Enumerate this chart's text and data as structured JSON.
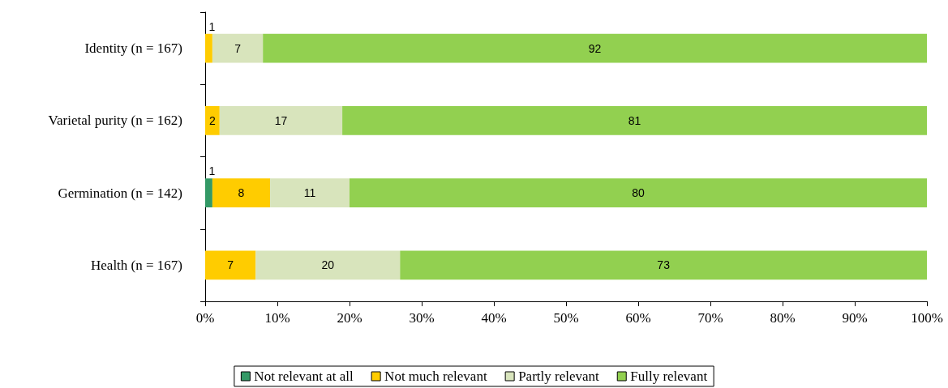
{
  "chart_data": {
    "type": "bar",
    "orientation": "horizontal",
    "stacked": true,
    "categories": [
      "Identity (n = 167)",
      "Varietal purity (n = 162)",
      "Germination (n = 142)",
      "Health (n = 167)"
    ],
    "series": [
      {
        "name": "Not relevant at all",
        "color": "#339966",
        "values": [
          0,
          0,
          1,
          0
        ],
        "value_labels": [
          null,
          null,
          "1",
          null
        ]
      },
      {
        "name": "Not much relevant",
        "color": "#ffcc00",
        "values": [
          1,
          2,
          8,
          7
        ],
        "value_labels": [
          "1",
          "2",
          "8",
          "7"
        ]
      },
      {
        "name": "Partly relevant",
        "color": "#d8e4bc",
        "values": [
          7,
          17,
          11,
          20
        ],
        "value_labels": [
          "7",
          "17",
          "11",
          "20"
        ]
      },
      {
        "name": "Fully relevant",
        "color": "#92d050",
        "values": [
          92,
          81,
          80,
          73
        ],
        "value_labels": [
          "92",
          "81",
          "80",
          "73"
        ]
      }
    ],
    "xlim": [
      0,
      100
    ],
    "xticks": [
      {
        "value": 0,
        "label": "0%"
      },
      {
        "value": 10,
        "label": "10%"
      },
      {
        "value": 20,
        "label": "20%"
      },
      {
        "value": 30,
        "label": "30%"
      },
      {
        "value": 40,
        "label": "40%"
      },
      {
        "value": 50,
        "label": "50%"
      },
      {
        "value": 60,
        "label": "60%"
      },
      {
        "value": 70,
        "label": "70%"
      },
      {
        "value": 80,
        "label": "80%"
      },
      {
        "value": 90,
        "label": "90%"
      },
      {
        "value": 100,
        "label": "100%"
      }
    ],
    "grid": false,
    "legend": "bottom"
  }
}
